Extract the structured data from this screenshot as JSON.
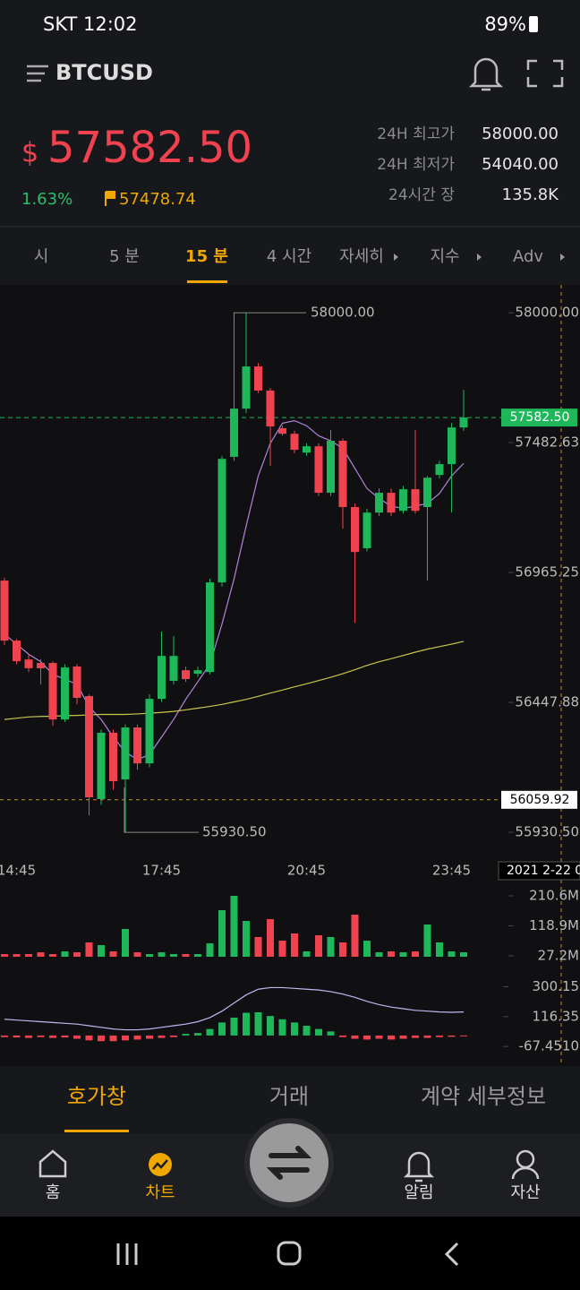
{
  "status_bar": {
    "left": "SKT 12:02",
    "battery": "89%"
  },
  "header": {
    "symbol": "BTCUSD"
  },
  "ticker": {
    "currency": "$",
    "price": "57582.50",
    "change": "1.63%",
    "mark_price": "57478.74",
    "stats": [
      {
        "label": "24H 최고가",
        "value": "58000.00"
      },
      {
        "label": "24H 최저가",
        "value": "54040.00"
      },
      {
        "label": "24시간 장",
        "value": "135.8K"
      }
    ]
  },
  "tabs": [
    "시",
    "5 분",
    "15 분",
    "4 시간",
    "자세히",
    "지수",
    "Adv"
  ],
  "chart_data": {
    "type": "candlestick",
    "categories": [
      null,
      "14:45",
      null,
      null,
      null,
      null,
      null,
      null,
      null,
      null,
      null,
      null,
      null,
      "17:45",
      null,
      null,
      null,
      null,
      null,
      null,
      null,
      null,
      null,
      null,
      null,
      "20:45",
      null,
      null,
      null,
      null,
      null,
      null,
      null,
      null,
      null,
      null,
      null,
      "23:45",
      null
    ],
    "open": [
      56933,
      56694,
      56619,
      56605,
      56605,
      56380,
      56591,
      56473,
      56063,
      56327,
      56141,
      56348,
      56205,
      56462,
      56534,
      56576,
      56562,
      56569,
      56926,
      57426,
      57618,
      57786,
      57690,
      57540,
      57518,
      57443,
      57468,
      57283,
      57490,
      57226,
      57062,
      57204,
      57283,
      57211,
      57297,
      57226,
      57354,
      57397,
      57543
    ],
    "high": [
      56944,
      56700,
      56640,
      56620,
      56612,
      56600,
      56600,
      56480,
      56340,
      56340,
      56360,
      56360,
      56480,
      56730,
      56712,
      56590,
      56590,
      56940,
      57430,
      58000,
      58000,
      57800,
      57700,
      57550,
      57530,
      57480,
      57480,
      57533,
      57500,
      57240,
      57220,
      57300,
      57300,
      57310,
      57533,
      57350,
      57410,
      57560,
      57693
    ],
    "low": [
      56676,
      56600,
      56570,
      56520,
      56355,
      56370,
      56440,
      55998,
      56040,
      56100,
      55930.5,
      56180,
      56190,
      56450,
      56520,
      56530,
      56550,
      56560,
      56910,
      57410,
      57600,
      57680,
      57390,
      57510,
      57440,
      57430,
      57270,
      57270,
      57140,
      56765,
      57050,
      57190,
      57190,
      57200,
      57200,
      56933,
      57340,
      57204,
      57530
    ],
    "close": [
      56694,
      56612,
      56584,
      56584,
      56380,
      56587,
      56466,
      56070,
      56327,
      56134,
      56348,
      56205,
      56462,
      56633,
      56633,
      56541,
      56576,
      56926,
      57418,
      57618,
      57786,
      57690,
      57547,
      57518,
      57454,
      57468,
      57283,
      57490,
      57226,
      57047,
      57204,
      57283,
      57204,
      57297,
      57211,
      57343,
      57397,
      57543,
      57582.5
    ],
    "colors": {
      "up": "#1eb85a",
      "down": "#f0434f"
    },
    "ylim": [
      55838,
      58111
    ],
    "yticks": [
      {
        "value": 58000,
        "label": "58000.00"
      },
      57482.63,
      56965.25,
      56447.88,
      {
        "value": 55930.5,
        "label": "55930.50"
      }
    ],
    "high_marker": {
      "value": 58000,
      "label": "58000.00"
    },
    "low_marker": {
      "value": 55930.5,
      "label": "55930.50"
    },
    "last_price": {
      "value": 57582.5,
      "label": "57582.50"
    },
    "crosshair": {
      "value": 56059.92,
      "label": "56059.92",
      "date": "2021 2-22 0"
    },
    "moving_averages": [
      {
        "color": "#b383d9",
        "values": [
          56720,
          56680,
          56640,
          56610,
          56560,
          56540,
          56520,
          56430,
          56380,
          56310,
          56250,
          56220,
          56240,
          56310,
          56380,
          56460,
          56530,
          56600,
          56760,
          56940,
          57150,
          57350,
          57480,
          57560,
          57570,
          57550,
          57510,
          57490,
          57460,
          57380,
          57300,
          57260,
          57230,
          57220,
          57230,
          57240,
          57280,
          57350,
          57400
        ]
      },
      {
        "color": "#c9c54a",
        "values": [
          56380,
          56385,
          56390,
          56392,
          56393,
          56395,
          56396,
          56398,
          56400,
          56400,
          56400,
          56402,
          56405,
          56408,
          56412,
          56418,
          56425,
          56432,
          56440,
          56450,
          56460,
          56472,
          56485,
          56497,
          56510,
          56522,
          56535,
          56548,
          56562,
          56578,
          56595,
          56610,
          56622,
          56635,
          56648,
          56660,
          56670,
          56680,
          56691
        ]
      }
    ],
    "volume": {
      "values": [
        32.7,
        32.7,
        32.7,
        38.1,
        32.7,
        40.9,
        38.1,
        68.3,
        60.0,
        40.9,
        109.3,
        38.1,
        32.7,
        38.1,
        32.7,
        32.7,
        32.7,
        65.5,
        166.8,
        210.6,
        133.9,
        84.7,
        139.4,
        73.7,
        95.6,
        40.9,
        90.1,
        84.7,
        68.3,
        153.1,
        73.7,
        38.1,
        40.9,
        38.1,
        40.9,
        123.0,
        68.3,
        40.9,
        38.1
      ],
      "ylim": [
        24.5,
        224.3
      ],
      "yticks": [
        {
          "value": 210.6,
          "label": "210.6M"
        },
        {
          "value": 118.9,
          "label": "118.9M"
        },
        {
          "value": 27.2,
          "label": "27.2M"
        }
      ]
    },
    "macd": {
      "histogram": [
        -10,
        -12,
        -15,
        -10,
        -15,
        -12,
        -20,
        -30,
        -35,
        -35,
        -30,
        -25,
        -20,
        -15,
        -10,
        10,
        15,
        40,
        80,
        110,
        140,
        143,
        120,
        100,
        80,
        60,
        40,
        25,
        -10,
        -20,
        -25,
        -20,
        -25,
        -20,
        -15,
        -15,
        -10,
        -8,
        -5
      ],
      "line": {
        "color": "#c7b3ef",
        "values": [
          100,
          95,
          90,
          85,
          80,
          75,
          70,
          60,
          50,
          40,
          35,
          35,
          40,
          50,
          60,
          70,
          85,
          110,
          150,
          200,
          250,
          285,
          295,
          295,
          290,
          285,
          280,
          270,
          255,
          235,
          210,
          190,
          175,
          165,
          155,
          150,
          145,
          143,
          145
        ]
      },
      "ylim": [
        -133,
        347
      ],
      "yticks": [
        300.15,
        116.35,
        {
          "value": -67.451,
          "label": "-67.4510"
        }
      ]
    }
  },
  "bottom_tabs": [
    "호가창",
    "거래",
    "계약 세부정보"
  ],
  "nav": [
    "홈",
    "차트",
    "알림",
    "자산"
  ]
}
